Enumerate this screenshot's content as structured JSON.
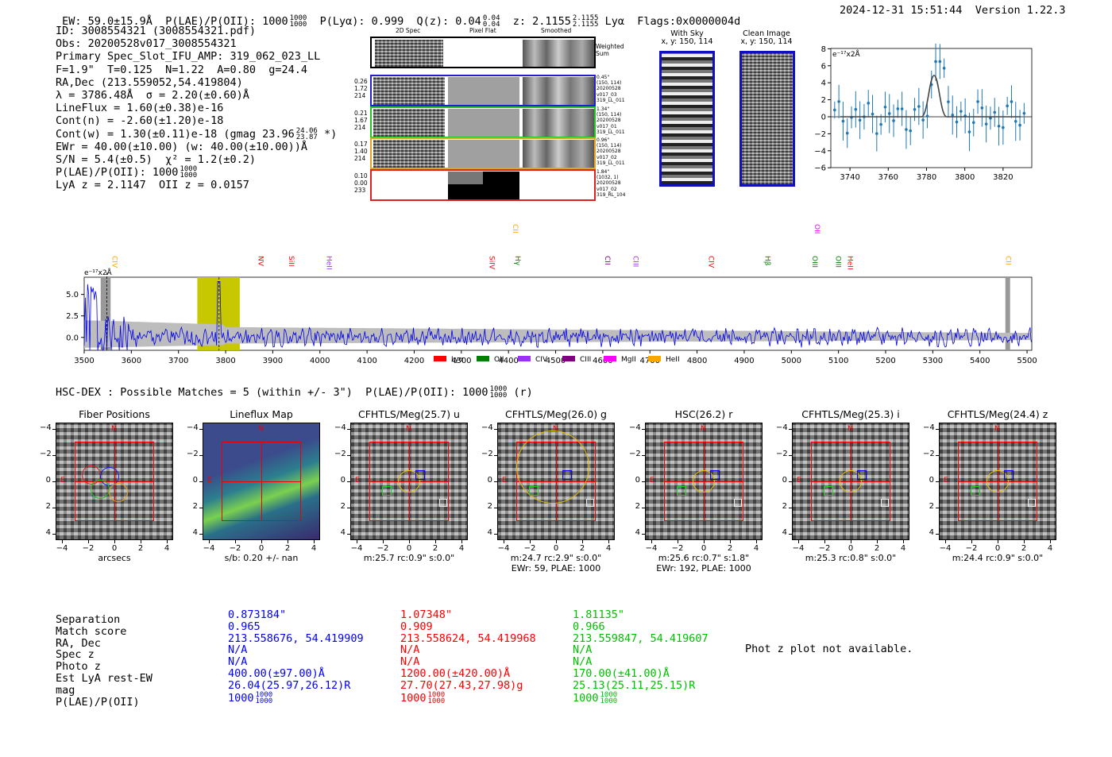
{
  "header": {
    "ew": "EW: 59.0±15.9Å",
    "plae": "P(LAE)/P(OII): 1000",
    "plae_num": "1000",
    "plae_den": "1000",
    "plya": "P(Lyα): 0.999",
    "qz": "Q(z): 0.04",
    "qz_num": "0.04",
    "qz_den": "0.04",
    "z": "z: 2.1155",
    "z_num": "2.1155",
    "z_den": "2.1155",
    "lya": "Lyα",
    "flags": "Flags:0x0000004d",
    "datetime": "2024-12-31 15:51:44",
    "version": "Version 1.22.3"
  },
  "info": {
    "id": "ID: 3008554321 (3008554321.pdf)",
    "obs": "Obs: 20200528v017_3008554321",
    "primary": "Primary Spec_Slot_IFU_AMP: 319_062_023_LL",
    "fiber": "F=1.9\"  T=0.125  N=1.22  A=0.80  g=24.4",
    "radec": "RA,Dec (213.559052,54.419804)",
    "lambda": "λ = 3786.48Å  σ = 2.20(±0.60)Å",
    "lineflux": "LineFlux = 1.60(±0.38)e-16",
    "contn": "Cont(n) = -2.60(±1.20)e-18",
    "contw": "Cont(w) = 1.30(±0.11)e-18 (gmag 23.96",
    "contw_num": "24.06",
    "contw_den": "23.87",
    "contw_end": "*)",
    "ewr": "EWr = 40.00(±10.00) (w: 40.00(±10.00))Å",
    "sn": "S/N = 5.4(±0.5)  χ² = 1.2(±0.2)",
    "plae": "P(LAE)/P(OII): 1000",
    "plae_num": "1000",
    "plae_den": "1000",
    "zline": "LyA z = 2.1147  OII z = 0.0157"
  },
  "cutouts": {
    "headers": [
      "2D Spec",
      "Pixel Flat",
      "Smoothed"
    ],
    "weighted": "Weighted\nSum",
    "rows": [
      {
        "left": "0.26\n1.72\n214",
        "right": "0.45\"\n(150, 114)\n20200528\nv017_03\n319_LL_011",
        "color": "#1f1fd0"
      },
      {
        "left": "0.21\n1.67\n214",
        "right": "1.34\"\n(150, 114)\n20200528\nv017_01\n319_LL_011",
        "color": "#22c322"
      },
      {
        "left": "0.17\n1.40\n214",
        "right": "0.96\"\n(150, 114)\n20200528\nv017_02\n319_LL_011",
        "color": "#e8a020"
      },
      {
        "left": "0.10\n0.00\n233",
        "right": "1.84\"\n(1032, 1)\n20200528\nv017_02\n319_RL_104",
        "color": "#e02020"
      }
    ]
  },
  "sky": {
    "with_sky": "With Sky",
    "with_sky_xy": "x, y: 150, 114",
    "clean": "Clean Image",
    "clean_xy": "x, y: 150, 114"
  },
  "zoom_chart": {
    "unit": "e⁻¹⁷x2Å",
    "xticks": [
      "3740",
      "3760",
      "3780",
      "3800",
      "3820"
    ],
    "yticks": [
      "8",
      "6",
      "4",
      "2",
      "0",
      "−2",
      "−4",
      "−6"
    ]
  },
  "chart_data": {
    "type": "line",
    "title": "",
    "ylabel": "e⁻¹⁷x2Å",
    "xlim": [
      3500,
      5510
    ],
    "ylim": [
      -1.5,
      7.0
    ],
    "xticks": [
      3500,
      3600,
      3700,
      3800,
      3900,
      4000,
      4100,
      4200,
      4300,
      4400,
      4500,
      4600,
      4700,
      4800,
      4900,
      5000,
      5100,
      5200,
      5300,
      5400,
      5500
    ],
    "yticks": [
      "5.0",
      "2.5",
      "0.0"
    ],
    "legend": [
      {
        "name": "Lyα",
        "color": "#ff0000"
      },
      {
        "name": "OII",
        "color": "#008000"
      },
      {
        "name": "CIV",
        "color": "#9b30ff"
      },
      {
        "name": "CIII",
        "color": "#800080"
      },
      {
        "name": "MgII",
        "color": "#ff00ff"
      },
      {
        "name": "HeII",
        "color": "#ffa500"
      }
    ],
    "lines": [
      {
        "name": "CIV",
        "x": 3555,
        "color": "#ffa500",
        "row": 0
      },
      {
        "name": "NV",
        "x": 3865,
        "color": "#ff0000",
        "row": 0
      },
      {
        "name": "SiII",
        "x": 3930,
        "color": "#ff0000",
        "row": 0
      },
      {
        "name": "HeII",
        "x": 4010,
        "color": "#9b30ff",
        "row": 0
      },
      {
        "name": "SiIV",
        "x": 4355,
        "color": "#ff0000",
        "row": 0
      },
      {
        "name": "Hγ",
        "x": 4410,
        "color": "#008000",
        "row": 0
      },
      {
        "name": "CII",
        "x": 4405,
        "color": "#ffa500",
        "row": 1
      },
      {
        "name": "CII",
        "x": 4600,
        "color": "#800080",
        "row": 0
      },
      {
        "name": "CIII",
        "x": 4660,
        "color": "#9b30ff",
        "row": 0
      },
      {
        "name": "CIV",
        "x": 4820,
        "color": "#ff0000",
        "row": 0
      },
      {
        "name": "Hβ",
        "x": 4940,
        "color": "#008000",
        "row": 0
      },
      {
        "name": "OIII",
        "x": 5040,
        "color": "#008000",
        "row": 0
      },
      {
        "name": "OII",
        "x": 5045,
        "color": "#ff00ff",
        "row": 1
      },
      {
        "name": "OIII",
        "x": 5090,
        "color": "#008000",
        "row": 0
      },
      {
        "name": "HeII",
        "x": 5115,
        "color": "#ff0000",
        "row": 0
      },
      {
        "name": "CII",
        "x": 5450,
        "color": "#ffa500",
        "row": 0
      }
    ],
    "highlight": {
      "x0": 3740,
      "x1": 3830,
      "color": "#c8c800"
    }
  },
  "hsc": {
    "title": "HSC-DEX : Possible Matches = 5 (within +/- 3\")  P(LAE)/P(OII): 1000",
    "frac_num": "1000",
    "frac_den": "1000",
    "tail": "(r)"
  },
  "panels": [
    {
      "title": "Fiber Positions",
      "cap1": "arcsecs",
      "cap2": ""
    },
    {
      "title": "Lineflux Map",
      "cap1": "s/b: 0.20 +/- nan",
      "cap2": ""
    },
    {
      "title": "CFHTLS/Meg(25.7) u",
      "cap1": "m:25.7 rc:0.9\"  s:0.0\"",
      "cap2": ""
    },
    {
      "title": "CFHTLS/Meg(26.0) g",
      "cap1": "m:24.7 rc:2.9\"  s:0.0\"",
      "cap2": "EWr: 59, PLAE: 1000"
    },
    {
      "title": "HSC(26.2) r",
      "cap1": "m:25.6  rc:0.7\"  s:1.8\"",
      "cap2": "EWr: 192, PLAE: 1000"
    },
    {
      "title": "CFHTLS/Meg(25.3) i",
      "cap1": "m:25.3 rc:0.8\"  s:0.0\"",
      "cap2": ""
    },
    {
      "title": "CFHTLS/Meg(24.4) z",
      "cap1": "m:24.4 rc:0.9\"  s:0.0\"",
      "cap2": ""
    }
  ],
  "axis": {
    "ticks": [
      "−4",
      "−2",
      "0",
      "2",
      "4"
    ],
    "n": "N",
    "e": "E"
  },
  "table": {
    "labels": "Separation\nMatch score\nRA, Dec\nSpec z\nPhoto z\nEst LyA rest-EW\nmag\nP(LAE)/P(OII)",
    "cols": [
      {
        "color": "#0000ff",
        "text": "0.873184\"\n0.965\n213.558676, 54.419909\nN/A\nN/A\n400.00(±97.00)Å\n26.04(25.97,26.12)R\n1000",
        "num": "1000",
        "den": "1000"
      },
      {
        "color": "#ff0000",
        "text": "1.07348\"\n0.909\n213.558624, 54.419968\nN/A\nN/A\n1200.00(±420.00)Å\n27.70(27.43,27.98)g\n1000",
        "num": "1000",
        "den": "1000"
      },
      {
        "color": "#00c000",
        "text": "1.81135\"\n0.966\n213.559847, 54.419607\nN/A\nN/A\n170.00(±41.00)Å\n25.13(25.11,25.15)R\n1000",
        "num": "1000",
        "den": "1000"
      }
    ],
    "photz": "Phot z plot not available."
  }
}
